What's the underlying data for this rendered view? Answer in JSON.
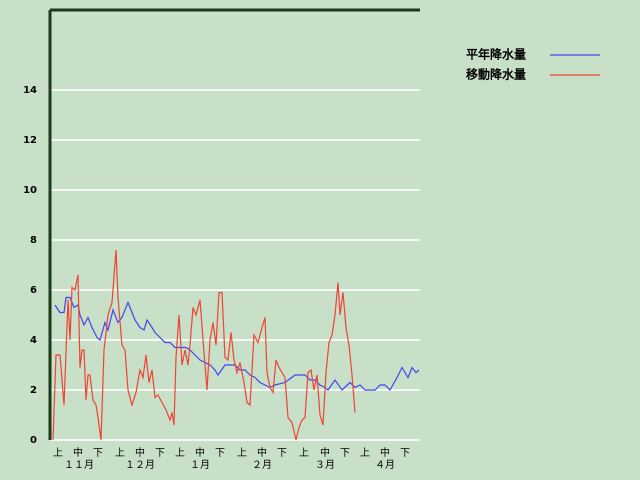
{
  "chart_data": {
    "type": "line",
    "xlim": [
      0,
      185
    ],
    "ylim": [
      0,
      17.2
    ],
    "yticks": [
      0,
      2,
      4,
      6,
      8,
      10,
      12,
      14
    ],
    "xticks": [
      {
        "value": 4,
        "label": "上"
      },
      {
        "value": 14,
        "label": "中"
      },
      {
        "value": 24,
        "label": "下"
      },
      {
        "value": 35,
        "label": "上"
      },
      {
        "value": 45,
        "label": "中"
      },
      {
        "value": 55,
        "label": "下"
      },
      {
        "value": 65,
        "label": "上"
      },
      {
        "value": 75,
        "label": "中"
      },
      {
        "value": 85,
        "label": "下"
      },
      {
        "value": 96,
        "label": "上"
      },
      {
        "value": 106,
        "label": "中"
      },
      {
        "value": 116,
        "label": "下"
      },
      {
        "value": 127,
        "label": "上"
      },
      {
        "value": 137.5,
        "label": "中"
      },
      {
        "value": 147.5,
        "label": "下"
      },
      {
        "value": 157.5,
        "label": "上"
      },
      {
        "value": 167.5,
        "label": "中"
      },
      {
        "value": 177.5,
        "label": "下"
      }
    ],
    "month_labels": [
      {
        "value": 14.5,
        "label": "１１月"
      },
      {
        "value": 45,
        "label": "１２月"
      },
      {
        "value": 75,
        "label": "１月"
      },
      {
        "value": 106,
        "label": "２月"
      },
      {
        "value": 137.5,
        "label": "３月"
      },
      {
        "value": 167.5,
        "label": "４月"
      }
    ],
    "grid": true,
    "legend": "top-right",
    "series": [
      {
        "name": "平年降水量",
        "color": "#4444ee",
        "x": [
          2.5,
          5,
          7,
          8,
          10,
          12,
          14,
          15,
          17,
          19,
          21,
          23.5,
          25,
          27.5,
          29,
          31.5,
          34,
          36,
          39,
          41,
          42.5,
          45,
          47,
          48.5,
          51,
          52.5,
          55,
          57.5,
          60,
          62.5,
          65,
          68,
          70,
          72.5,
          75,
          77.5,
          80,
          82.5,
          84,
          87.5,
          92.5,
          95,
          97.5,
          100,
          102.5,
          105,
          107.5,
          110,
          112.5,
          117.5,
          122.5,
          127.5,
          130,
          132.5,
          135,
          137.5,
          139,
          142.5,
          146,
          150,
          152.5,
          155,
          157.5,
          162.5,
          165,
          167.5,
          170,
          173.5,
          176,
          179,
          181,
          183,
          184.5
        ],
        "values": [
          5.4,
          5.1,
          5.1,
          5.7,
          5.7,
          5.3,
          5.4,
          5.0,
          4.6,
          4.9,
          4.5,
          4.1,
          4.0,
          4.7,
          4.4,
          5.2,
          4.7,
          4.9,
          5.5,
          5.1,
          4.8,
          4.5,
          4.4,
          4.8,
          4.5,
          4.3,
          4.1,
          3.9,
          3.9,
          3.7,
          3.7,
          3.7,
          3.6,
          3.4,
          3.2,
          3.1,
          3.0,
          2.8,
          2.6,
          3.0,
          3.0,
          2.8,
          2.8,
          2.6,
          2.5,
          2.3,
          2.2,
          2.1,
          2.2,
          2.3,
          2.6,
          2.6,
          2.4,
          2.4,
          2.2,
          2.1,
          2.0,
          2.4,
          2.0,
          2.3,
          2.1,
          2.2,
          2.0,
          2.0,
          2.2,
          2.2,
          2.0,
          2.5,
          2.9,
          2.5,
          2.9,
          2.7,
          2.8
        ]
      },
      {
        "name": "移動降水量",
        "color": "#ee4433",
        "x": [
          1.5,
          3,
          5,
          7,
          9,
          10,
          11,
          12.5,
          14,
          15,
          16,
          17,
          18,
          19,
          20,
          21.5,
          23,
          24,
          25.5,
          27,
          29,
          31,
          33,
          34,
          36,
          37.5,
          39,
          41,
          43,
          45,
          46.5,
          48,
          49.5,
          51,
          52.5,
          54,
          56,
          58,
          60,
          61,
          62,
          63,
          64.5,
          66,
          67.5,
          69,
          70,
          71.5,
          73,
          75,
          77,
          78.5,
          80,
          81.5,
          83,
          84.5,
          86,
          87.5,
          89,
          90.5,
          92,
          93.5,
          95,
          97,
          98.5,
          100,
          102,
          104,
          106,
          107.5,
          108.5,
          110,
          111.5,
          113,
          114.5,
          116,
          117.5,
          119,
          121,
          123,
          124.5,
          126,
          127.5,
          129,
          130.5,
          132,
          133.5,
          135,
          136.5,
          138,
          139.5,
          141,
          142.5,
          144,
          145,
          146.5,
          148,
          149.5,
          151,
          152.5
        ],
        "values": [
          0,
          3.4,
          3.4,
          1.4,
          5.6,
          4.0,
          6.1,
          6.0,
          6.6,
          2.9,
          3.6,
          3.6,
          1.6,
          2.6,
          2.6,
          1.6,
          1.4,
          0.9,
          0,
          3.6,
          5.0,
          5.5,
          7.6,
          5.7,
          3.8,
          3.6,
          2.0,
          1.4,
          1.9,
          2.8,
          2.5,
          3.4,
          2.3,
          2.8,
          1.7,
          1.8,
          1.5,
          1.2,
          0.8,
          1.1,
          0.6,
          3.3,
          5.0,
          3.0,
          3.6,
          3.0,
          3.8,
          5.3,
          5.0,
          5.6,
          3.5,
          2.0,
          4.0,
          4.7,
          3.8,
          5.9,
          5.9,
          3.3,
          3.2,
          4.3,
          3.2,
          2.7,
          3.1,
          2.3,
          1.5,
          1.4,
          4.2,
          3.9,
          4.5,
          4.9,
          2.7,
          2.1,
          1.9,
          3.2,
          2.9,
          2.7,
          2.5,
          0.9,
          0.7,
          0,
          0.5,
          0.8,
          0.9,
          2.7,
          2.8,
          2.0,
          2.6,
          1.0,
          0.6,
          2.7,
          3.9,
          4.2,
          5.0,
          6.3,
          5.0,
          5.9,
          4.5,
          3.8,
          2.6,
          1.1
        ]
      }
    ]
  }
}
